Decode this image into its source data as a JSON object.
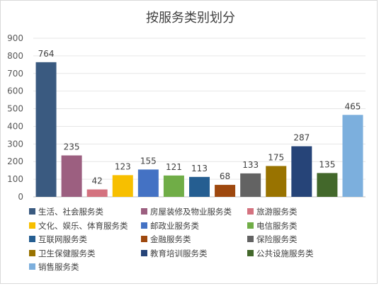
{
  "chart_data": {
    "type": "bar",
    "title": "按服务类别划分",
    "categories": [
      "生活、社会服务类",
      "房屋装修及物业服务类",
      "旅游服务类",
      "文化、娱乐、体育服务类",
      "邮政业服务类",
      "电信服务类",
      "互联网服务类",
      "金融服务类",
      "保险服务类",
      "卫生保健服务类",
      "教育培训服务类",
      "公共设施服务类",
      "销售服务类"
    ],
    "values": [
      764,
      235,
      42,
      123,
      155,
      121,
      113,
      68,
      133,
      175,
      287,
      135,
      465
    ],
    "colors": [
      "#3a5a80",
      "#9c5f80",
      "#d4727f",
      "#f7bf00",
      "#4472c4",
      "#70ad47",
      "#255e91",
      "#9e480e",
      "#636363",
      "#997300",
      "#264478",
      "#43682b",
      "#7cafdd"
    ],
    "ylim": [
      0,
      900
    ],
    "yticks": [
      0,
      100,
      200,
      300,
      400,
      500,
      600,
      700,
      800,
      900
    ],
    "grid": true,
    "legend_position": "bottom"
  }
}
